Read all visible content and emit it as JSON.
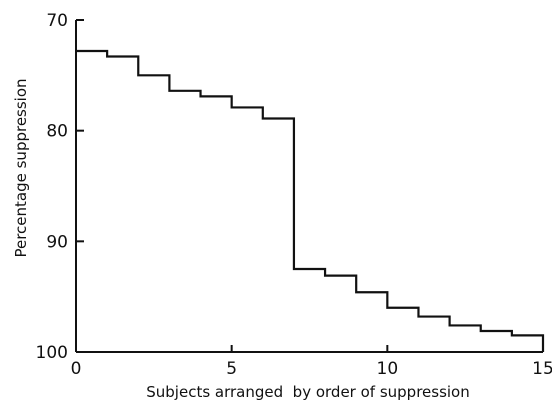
{
  "chart_data": {
    "type": "line",
    "subtype": "step",
    "title": "",
    "xlabel": "Subjects arranged  by order of suppression",
    "ylabel": "Percentage suppression",
    "xlim": [
      0,
      15
    ],
    "ylim": [
      70,
      100
    ],
    "y_inverted": true,
    "grid": false,
    "x_ticks": [
      0,
      5,
      10,
      15
    ],
    "x_tick_labels": [
      "0",
      "5",
      "10",
      "15"
    ],
    "y_ticks": [
      70,
      80,
      90,
      100
    ],
    "y_tick_labels": [
      "70",
      "80",
      "90",
      "100"
    ],
    "series": [
      {
        "x": [
          0,
          1,
          2,
          3,
          4,
          5,
          6,
          7,
          8,
          9,
          10,
          11,
          12,
          13,
          14,
          15
        ],
        "values": [
          72.8,
          73.3,
          75.0,
          76.4,
          76.9,
          77.9,
          78.9,
          92.5,
          93.1,
          94.6,
          96.0,
          96.8,
          97.6,
          98.1,
          98.5,
          99.7
        ]
      }
    ]
  }
}
